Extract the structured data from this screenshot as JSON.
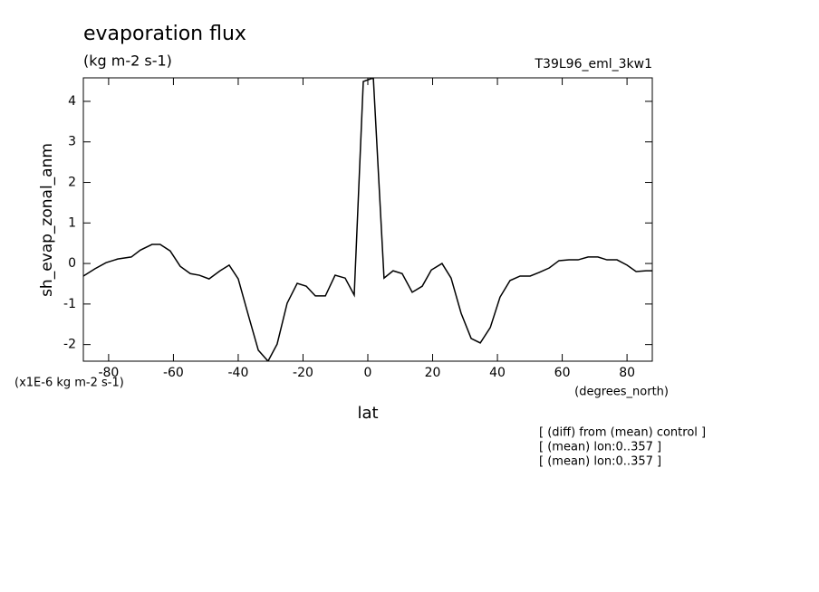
{
  "chart_data": {
    "type": "line",
    "title": "evaporation flux",
    "subtitle": "(kg m-2 s-1)",
    "dataset_label": "T39L96_eml_3kw1",
    "y_label": "sh_evap_zonal_anm",
    "x_label": "lat",
    "y_units_label": "(x1E-6 kg m-2 s-1)",
    "x_units_label": "(degrees_north)",
    "notes": [
      "[ (diff) from (mean) control ]",
      "[ (mean) lon:0..357 ]",
      "[ (mean) lon:0..357 ]"
    ],
    "xlim": [
      -87.8,
      87.8
    ],
    "ylim": [
      -2.41,
      4.58
    ],
    "xticks": [
      -80,
      -60,
      -40,
      -20,
      0,
      20,
      40,
      60,
      80
    ],
    "yticks": [
      -2,
      -1,
      0,
      1,
      2,
      3,
      4
    ],
    "color": "#000000",
    "x": [
      -87.8,
      -84.2,
      -80.8,
      -77.2,
      -73.0,
      -70.2,
      -66.6,
      -64.1,
      -61.0,
      -57.9,
      -54.8,
      -52.0,
      -49.0,
      -45.6,
      -42.8,
      -40.0,
      -36.9,
      -33.8,
      -30.8,
      -28.0,
      -24.9,
      -21.8,
      -19.0,
      -16.2,
      -13.1,
      -10.1,
      -7.0,
      -4.2,
      -1.4,
      1.7,
      5.0,
      7.8,
      10.6,
      13.7,
      16.8,
      19.6,
      22.9,
      25.7,
      28.8,
      31.9,
      34.7,
      37.8,
      40.8,
      43.9,
      47.0,
      50.1,
      52.9,
      56.0,
      59.0,
      62.1,
      64.9,
      68.0,
      71.0,
      73.8,
      76.9,
      80.0,
      82.8,
      85.9,
      87.8
    ],
    "values": [
      -0.31,
      -0.13,
      0.02,
      0.11,
      0.16,
      0.33,
      0.47,
      0.47,
      0.31,
      -0.07,
      -0.25,
      -0.29,
      -0.38,
      -0.18,
      -0.04,
      -0.38,
      -1.27,
      -2.14,
      -2.41,
      -1.99,
      -0.98,
      -0.49,
      -0.56,
      -0.8,
      -0.8,
      -0.29,
      -0.36,
      -0.78,
      4.49,
      4.58,
      -0.36,
      -0.18,
      -0.25,
      -0.71,
      -0.56,
      -0.16,
      0.0,
      -0.36,
      -1.23,
      -1.85,
      -1.96,
      -1.58,
      -0.83,
      -0.42,
      -0.31,
      -0.31,
      -0.22,
      -0.11,
      0.07,
      0.09,
      0.09,
      0.16,
      0.16,
      0.09,
      0.09,
      -0.04,
      -0.2,
      -0.18,
      -0.18
    ]
  }
}
